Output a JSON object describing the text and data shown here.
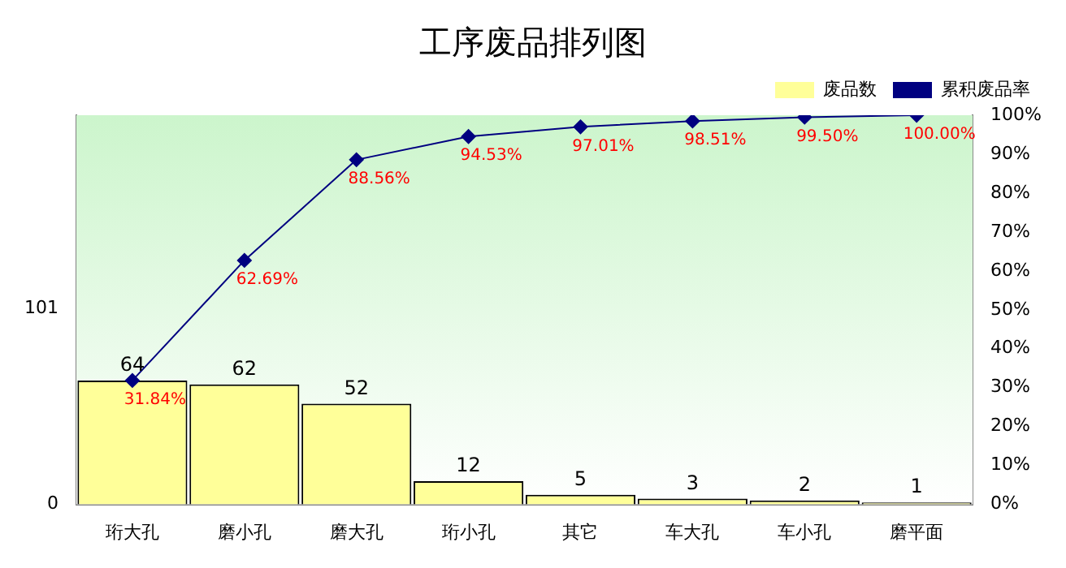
{
  "chart_data": {
    "type": "bar",
    "title": "工序废品排列图",
    "categories": [
      "珩大孔",
      "磨小孔",
      "磨大孔",
      "珩小孔",
      "其它",
      "车大孔",
      "车小孔",
      "磨平面"
    ],
    "series": [
      {
        "name": "废品数",
        "color": "#ffff99",
        "values": [
          64,
          62,
          52,
          12,
          5,
          3,
          2,
          1
        ],
        "value_labels": [
          "64",
          "62",
          "52",
          "12",
          "5",
          "3",
          "2",
          "1"
        ]
      },
      {
        "name": "累积废品率",
        "type": "line",
        "axis": "y2",
        "color": "#000080",
        "marker": "diamond",
        "values": [
          31.84,
          62.69,
          88.56,
          94.53,
          97.01,
          98.51,
          99.5,
          100
        ],
        "value_labels": [
          "31.84%",
          "62.69%",
          "88.56%",
          "94.53%",
          "97.01%",
          "98.51%",
          "99.50%",
          "100.00%"
        ]
      }
    ],
    "ylim": [
      0,
      201
    ],
    "yticks": [
      0,
      101
    ],
    "y2lim": [
      0,
      100
    ],
    "y2ticks": [
      {
        "value": 0,
        "label": "0%"
      },
      {
        "value": 10,
        "label": "10%"
      },
      {
        "value": 20,
        "label": "20%"
      },
      {
        "value": 30,
        "label": "30%"
      },
      {
        "value": 40,
        "label": "40%"
      },
      {
        "value": 50,
        "label": "50%"
      },
      {
        "value": 60,
        "label": "60%"
      },
      {
        "value": 70,
        "label": "70%"
      },
      {
        "value": 80,
        "label": "80%"
      },
      {
        "value": 90,
        "label": "90%"
      },
      {
        "value": 100,
        "label": "100%"
      }
    ],
    "legend": "top right"
  }
}
